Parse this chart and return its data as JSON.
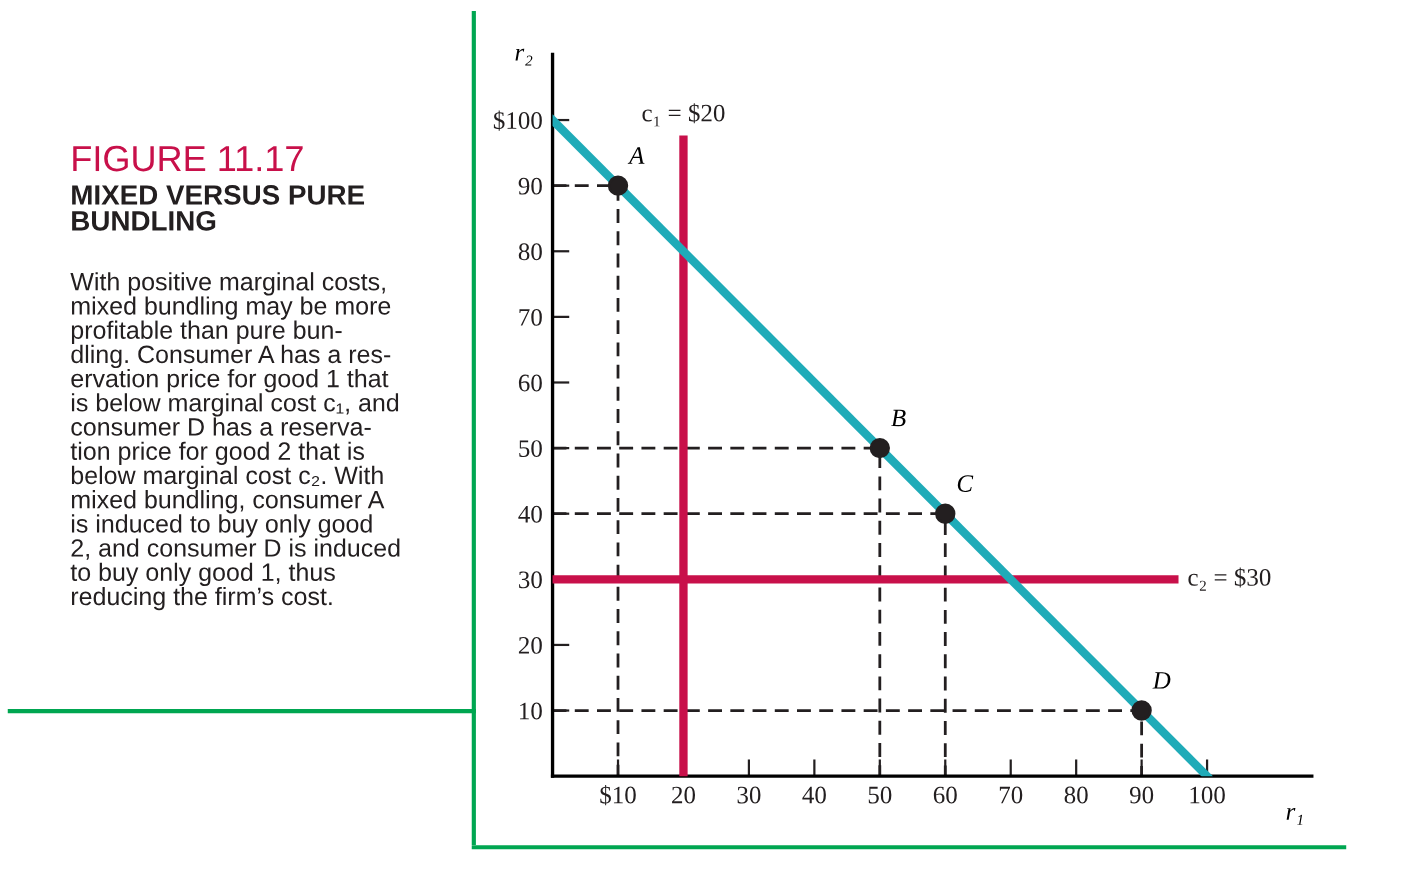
{
  "chart_data": {
    "type": "line",
    "title": "FIGURE 11.17",
    "subtitle": "MIXED VERSUS PURE\nBUNDLING",
    "xlabel": "r₁",
    "ylabel": "r₂",
    "xlim": [
      0,
      116
    ],
    "ylim": [
      0,
      110
    ],
    "xticks": [
      {
        "value": 10,
        "label": "$10"
      },
      20,
      30,
      40,
      50,
      60,
      70,
      80,
      90,
      100
    ],
    "yticks": [
      10,
      20,
      30,
      40,
      50,
      60,
      70,
      80,
      90,
      {
        "value": 100,
        "label": "$100"
      }
    ],
    "grid": false,
    "legend": false,
    "series": [
      {
        "x": [
          0,
          10,
          10
        ],
        "values": [
          90,
          90,
          0
        ],
        "color": "#231f20",
        "line_style": "dashed"
      },
      {
        "x": [
          0,
          50,
          50
        ],
        "values": [
          50,
          50,
          0
        ],
        "color": "#231f20",
        "line_style": "dashed"
      },
      {
        "x": [
          0,
          60,
          60
        ],
        "values": [
          40,
          40,
          0
        ],
        "color": "#231f20",
        "line_style": "dashed"
      },
      {
        "x": [
          0,
          90,
          90
        ],
        "values": [
          10,
          10,
          0
        ],
        "color": "#231f20",
        "line_style": "dashed"
      },
      {
        "name": "c₁ = $20",
        "x": [
          20,
          20
        ],
        "values": [
          0,
          97
        ],
        "color": "#c8104a",
        "line_style": "solid"
      },
      {
        "name": "c₂ = $30",
        "x": [
          0,
          95
        ],
        "values": [
          30,
          30
        ],
        "color": "#c8104a",
        "line_style": "solid"
      },
      {
        "x": [
          0,
          100
        ],
        "values": [
          100,
          0
        ],
        "color": "#1fabb8",
        "line_style": "solid"
      },
      {
        "type": "scatter",
        "x": [
          10,
          50,
          60,
          90
        ],
        "values": [
          90,
          50,
          40,
          10
        ],
        "color": "#231f20",
        "marker": "circle"
      }
    ],
    "annotations": [
      {
        "text": "A",
        "x": 10,
        "y": 90
      },
      {
        "text": "B",
        "x": 50,
        "y": 50
      },
      {
        "text": "C",
        "x": 60,
        "y": 40
      },
      {
        "text": "D",
        "x": 90,
        "y": 10
      },
      "With positive marginal costs,\nmixed bundling may be more\nprofitable than pure bun-\ndling. Consumer A has a res-\nervation price for good 1 that\nis below marginal cost c₁, and\nconsumer D has a reserva-\ntion price for good 2 that is\nbelow marginal cost c₂. With\nmixed bundling, consumer A\nis induced to buy only good\n2, and consumer D is induced\nto buy only good 1, thus\nreducing the firm’s cost."
    ]
  }
}
